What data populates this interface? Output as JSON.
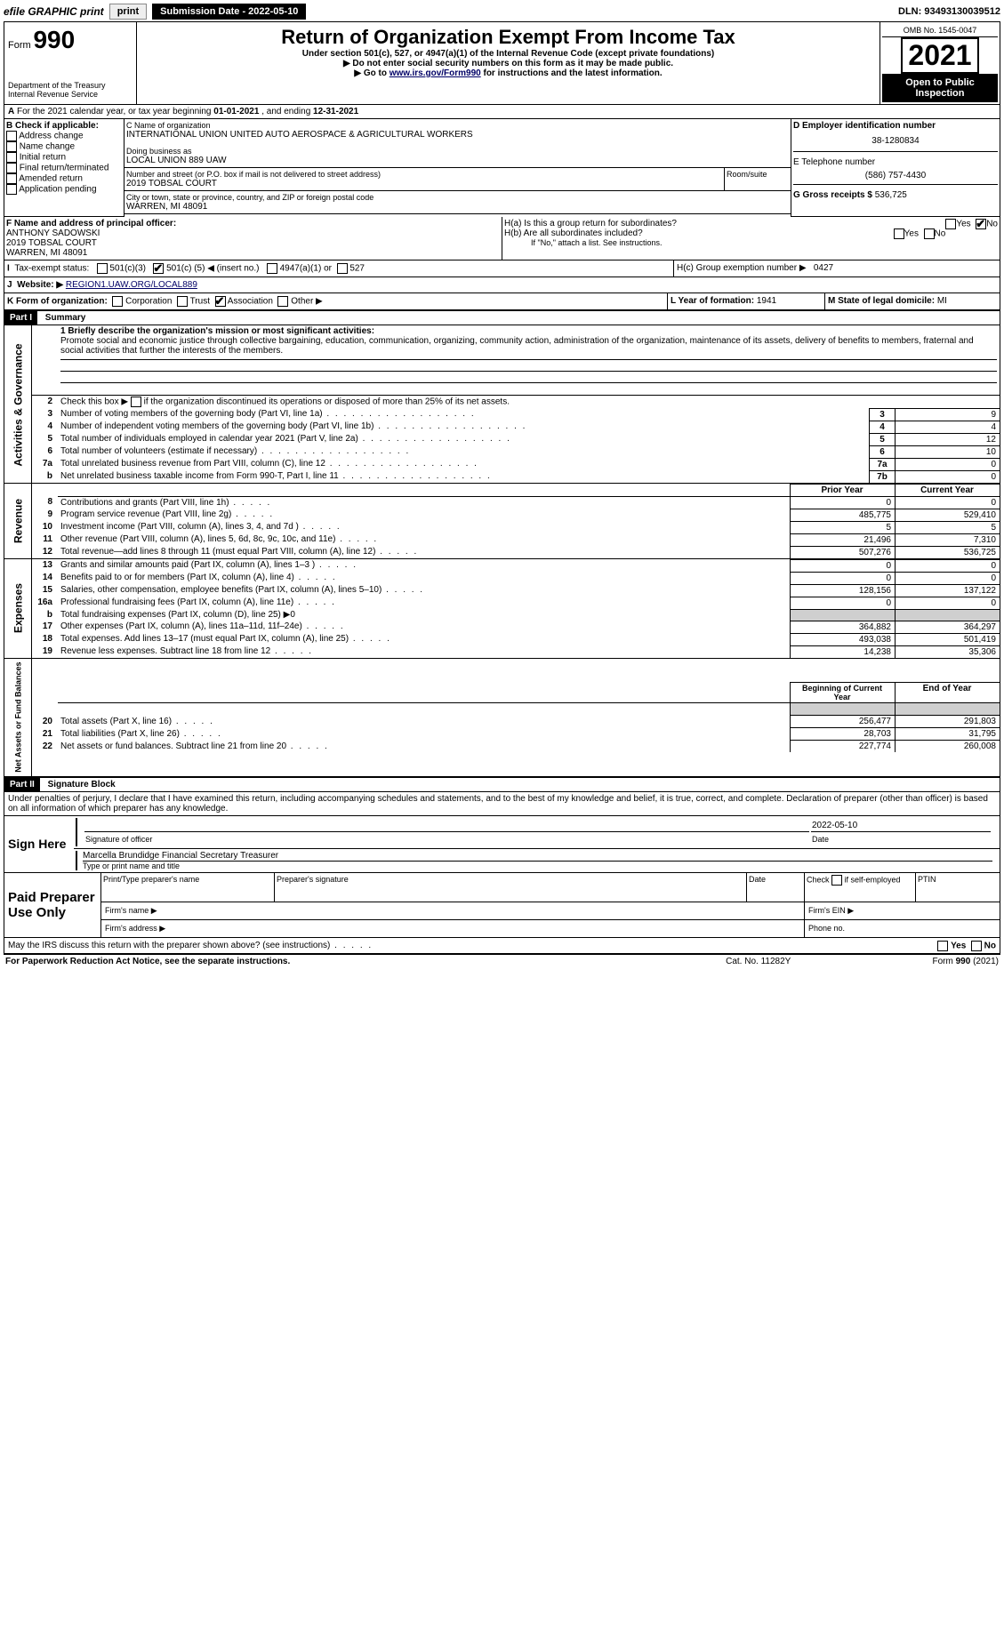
{
  "topbar": {
    "efile": "efile GRAPHIC print",
    "submission_label": "Submission Date - 2022-05-10",
    "dln": "DLN: 93493130039512"
  },
  "header": {
    "form_prefix": "Form",
    "form_number": "990",
    "dept1": "Department of the Treasury",
    "dept2": "Internal Revenue Service",
    "title": "Return of Organization Exempt From Income Tax",
    "sub1": "Under section 501(c), 527, or 4947(a)(1) of the Internal Revenue Code (except private foundations)",
    "sub2": "▶ Do not enter social security numbers on this form as it may be made public.",
    "sub3_pre": "▶ Go to ",
    "sub3_link": "www.irs.gov/Form990",
    "sub3_post": " for instructions and the latest information.",
    "omb": "OMB No. 1545-0047",
    "year": "2021",
    "open": "Open to Public Inspection"
  },
  "A": {
    "text_pre": "For the 2021 calendar year, or tax year beginning ",
    "begin": "01-01-2021",
    "mid": " , and ending ",
    "end": "12-31-2021"
  },
  "B": {
    "label": "B Check if applicable:",
    "opts": [
      "Address change",
      "Name change",
      "Initial return",
      "Final return/terminated",
      "Amended return",
      "Application pending"
    ]
  },
  "C": {
    "name_label": "C Name of organization",
    "name": "INTERNATIONAL UNION UNITED AUTO AEROSPACE & AGRICULTURAL WORKERS",
    "dba_label": "Doing business as",
    "dba": "LOCAL UNION 889 UAW",
    "addr_label": "Number and street (or P.O. box if mail is not delivered to street address)",
    "room_label": "Room/suite",
    "addr": "2019 TOBSAL COURT",
    "city_label": "City or town, state or province, country, and ZIP or foreign postal code",
    "city": "WARREN, MI  48091"
  },
  "D": {
    "label": "D Employer identification number",
    "val": "38-1280834"
  },
  "E": {
    "label": "E Telephone number",
    "val": "(586) 757-4430"
  },
  "G": {
    "label": "G Gross receipts $",
    "val": "536,725"
  },
  "F": {
    "label": "F Name and address of principal officer:",
    "name": "ANTHONY SADOWSKI",
    "addr1": "2019 TOBSAL COURT",
    "addr2": "WARREN, MI  48091"
  },
  "H": {
    "a": "H(a)  Is this a group return for subordinates?",
    "b": "H(b)  Are all subordinates included?",
    "b_note": "If \"No,\" attach a list. See instructions.",
    "c_label": "H(c)  Group exemption number ▶",
    "c_val": "0427",
    "yes": "Yes",
    "no": "No"
  },
  "I": {
    "label": "Tax-exempt status:",
    "c3": "501(c)(3)",
    "c_pre": "501(c) (",
    "c_num": "5",
    "c_post": ") ◀ (insert no.)",
    "a1": "4947(a)(1) or",
    "527": "527"
  },
  "J": {
    "label": "Website: ▶",
    "val": "REGION1.UAW.ORG/LOCAL889"
  },
  "K": {
    "label": "K Form of organization:",
    "corp": "Corporation",
    "trust": "Trust",
    "assoc": "Association",
    "other": "Other ▶"
  },
  "L": {
    "label": "L Year of formation:",
    "val": "1941"
  },
  "M": {
    "label": "M State of legal domicile:",
    "val": "MI"
  },
  "part1": {
    "header": "Part I",
    "title": "Summary",
    "q1_label": "1  Briefly describe the organization's mission or most significant activities:",
    "q1_text": "Promote social and economic justice through collective bargaining, education, communication, organizing, community action, administration of the organization, maintenance of its assets, delivery of benefits to members, fraternal and social activities that further the interests of the members.",
    "q2": "Check this box ▶        if the organization discontinued its operations or disposed of more than 25% of its net assets.",
    "rows_ag": [
      {
        "n": "3",
        "t": "Number of voting members of the governing body (Part VI, line 1a)",
        "box": "3",
        "v": "9"
      },
      {
        "n": "4",
        "t": "Number of independent voting members of the governing body (Part VI, line 1b)",
        "box": "4",
        "v": "4"
      },
      {
        "n": "5",
        "t": "Total number of individuals employed in calendar year 2021 (Part V, line 2a)",
        "box": "5",
        "v": "12"
      },
      {
        "n": "6",
        "t": "Total number of volunteers (estimate if necessary)",
        "box": "6",
        "v": "10"
      },
      {
        "n": "7a",
        "t": "Total unrelated business revenue from Part VIII, column (C), line 12",
        "box": "7a",
        "v": "0"
      },
      {
        "n": "b",
        "t": "Net unrelated business taxable income from Form 990-T, Part I, line 11",
        "box": "7b",
        "v": "0"
      }
    ],
    "col_prior": "Prior Year",
    "col_current": "Current Year",
    "rows_rev": [
      {
        "n": "8",
        "t": "Contributions and grants (Part VIII, line 1h)",
        "p": "0",
        "c": "0"
      },
      {
        "n": "9",
        "t": "Program service revenue (Part VIII, line 2g)",
        "p": "485,775",
        "c": "529,410"
      },
      {
        "n": "10",
        "t": "Investment income (Part VIII, column (A), lines 3, 4, and 7d )",
        "p": "5",
        "c": "5"
      },
      {
        "n": "11",
        "t": "Other revenue (Part VIII, column (A), lines 5, 6d, 8c, 9c, 10c, and 11e)",
        "p": "21,496",
        "c": "7,310"
      },
      {
        "n": "12",
        "t": "Total revenue—add lines 8 through 11 (must equal Part VIII, column (A), line 12)",
        "p": "507,276",
        "c": "536,725"
      }
    ],
    "rows_exp": [
      {
        "n": "13",
        "t": "Grants and similar amounts paid (Part IX, column (A), lines 1–3 )",
        "p": "0",
        "c": "0"
      },
      {
        "n": "14",
        "t": "Benefits paid to or for members (Part IX, column (A), line 4)",
        "p": "0",
        "c": "0"
      },
      {
        "n": "15",
        "t": "Salaries, other compensation, employee benefits (Part IX, column (A), lines 5–10)",
        "p": "128,156",
        "c": "137,122"
      },
      {
        "n": "16a",
        "t": "Professional fundraising fees (Part IX, column (A), line 11e)",
        "p": "0",
        "c": "0"
      },
      {
        "n": "b",
        "t": "Total fundraising expenses (Part IX, column (D), line 25) ▶0",
        "p": "",
        "c": "",
        "grey": true
      },
      {
        "n": "17",
        "t": "Other expenses (Part IX, column (A), lines 11a–11d, 11f–24e)",
        "p": "364,882",
        "c": "364,297"
      },
      {
        "n": "18",
        "t": "Total expenses. Add lines 13–17 (must equal Part IX, column (A), line 25)",
        "p": "493,038",
        "c": "501,419"
      },
      {
        "n": "19",
        "t": "Revenue less expenses. Subtract line 18 from line 12",
        "p": "14,238",
        "c": "35,306"
      }
    ],
    "col_begin": "Beginning of Current Year",
    "col_end": "End of Year",
    "rows_net": [
      {
        "n": "20",
        "t": "Total assets (Part X, line 16)",
        "p": "256,477",
        "c": "291,803"
      },
      {
        "n": "21",
        "t": "Total liabilities (Part X, line 26)",
        "p": "28,703",
        "c": "31,795"
      },
      {
        "n": "22",
        "t": "Net assets or fund balances. Subtract line 21 from line 20",
        "p": "227,774",
        "c": "260,008"
      }
    ],
    "vlabels": {
      "ag": "Activities & Governance",
      "rev": "Revenue",
      "exp": "Expenses",
      "net": "Net Assets or Fund Balances"
    }
  },
  "part2": {
    "header": "Part II",
    "title": "Signature Block",
    "decl": "Under penalties of perjury, I declare that I have examined this return, including accompanying schedules and statements, and to the best of my knowledge and belief, it is true, correct, and complete. Declaration of preparer (other than officer) is based on all information of which preparer has any knowledge.",
    "sign_here": "Sign Here",
    "sig_officer": "Signature of officer",
    "sig_date": "2022-05-10",
    "date_label": "Date",
    "sig_name": "Marcella Brundidge  Financial Secretary Treasurer",
    "sig_name_label": "Type or print name and title",
    "paid": "Paid Preparer Use Only",
    "p_name": "Print/Type preparer's name",
    "p_sig": "Preparer's signature",
    "p_date": "Date",
    "p_check": "Check         if self-employed",
    "p_ptin": "PTIN",
    "firm_name": "Firm's name    ▶",
    "firm_ein": "Firm's EIN ▶",
    "firm_addr": "Firm's address ▶",
    "phone": "Phone no.",
    "may_irs": "May the IRS discuss this return with the preparer shown above? (see instructions)",
    "paperwork": "For Paperwork Reduction Act Notice, see the separate instructions.",
    "cat": "Cat. No. 11282Y",
    "formfoot": "Form 990 (2021)"
  }
}
